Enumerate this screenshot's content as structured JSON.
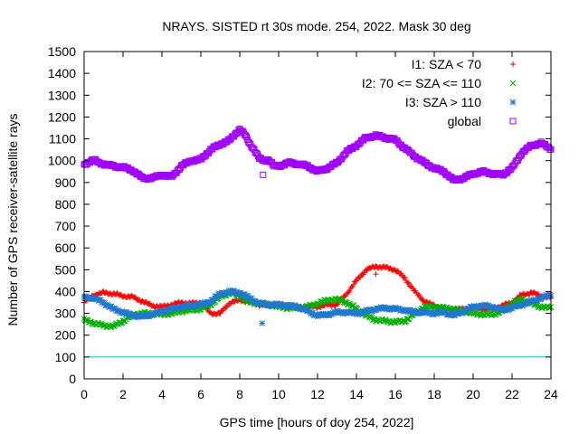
{
  "chart_data": {
    "type": "scatter",
    "title": "NRAYS. SISTED rt 30s mode. 254, 2022. Mask 30 deg",
    "xlabel": "GPS time [hours of doy 254, 2022]",
    "ylabel": "Number of GPS receiver-satellite rays",
    "xlim": [
      0,
      24
    ],
    "ylim": [
      0,
      1500
    ],
    "xticks": [
      0,
      2,
      4,
      6,
      8,
      10,
      12,
      14,
      16,
      18,
      20,
      22,
      24
    ],
    "yticks": [
      0,
      100,
      200,
      300,
      400,
      500,
      600,
      700,
      800,
      900,
      1000,
      1100,
      1200,
      1300,
      1400,
      1500
    ],
    "legend_position": "top-right",
    "reference_line": {
      "y": 100,
      "color": "#00c0c0"
    },
    "series": [
      {
        "name": "I1: SZA < 70",
        "marker": "plus",
        "color": "#ff0000",
        "x": [
          0.0,
          0.5,
          1.0,
          1.5,
          2.0,
          2.5,
          3.0,
          3.5,
          4.0,
          5.0,
          5.5,
          6.0,
          6.5,
          7.0,
          7.5,
          8.0,
          8.5,
          9.0,
          10.0,
          11.0,
          12.0,
          12.5,
          13.0,
          13.5,
          14.0,
          14.5,
          15.0,
          15.5,
          16.0,
          16.5,
          17.0,
          17.5,
          18.0,
          18.5,
          19.0,
          19.5,
          20.0,
          21.0,
          21.5,
          22.0,
          22.5,
          23.0,
          23.5,
          24.0
        ],
        "y": [
          350,
          385,
          395,
          390,
          380,
          375,
          355,
          335,
          330,
          350,
          345,
          350,
          300,
          300,
          350,
          360,
          355,
          340,
          340,
          330,
          330,
          340,
          340,
          390,
          450,
          500,
          515,
          510,
          500,
          460,
          400,
          355,
          335,
          320,
          315,
          320,
          325,
          320,
          335,
          350,
          385,
          395,
          380,
          370
        ]
      },
      {
        "name": "I2: 70 <= SZA <= 110",
        "marker": "cross",
        "color": "#00b000",
        "x": [
          0.0,
          0.5,
          1.0,
          1.5,
          2.0,
          2.5,
          3.0,
          3.5,
          4.0,
          4.5,
          5.0,
          5.5,
          6.0,
          6.5,
          7.0,
          7.5,
          8.0,
          8.5,
          9.0,
          9.5,
          10.0,
          10.5,
          11.0,
          11.5,
          12.0,
          12.5,
          13.0,
          13.5,
          14.0,
          14.5,
          15.0,
          15.5,
          16.0,
          16.5,
          17.0,
          17.5,
          18.0,
          18.5,
          19.0,
          19.5,
          20.0,
          20.5,
          21.0,
          21.5,
          22.0,
          22.5,
          23.0,
          23.5,
          24.0
        ],
        "y": [
          270,
          255,
          245,
          240,
          265,
          295,
          300,
          300,
          295,
          300,
          310,
          315,
          320,
          340,
          375,
          395,
          380,
          350,
          345,
          340,
          330,
          325,
          325,
          330,
          345,
          360,
          365,
          350,
          320,
          290,
          270,
          265,
          260,
          265,
          300,
          330,
          330,
          325,
          320,
          310,
          300,
          295,
          295,
          310,
          345,
          365,
          345,
          330,
          325
        ]
      },
      {
        "name": "I3: SZA > 110",
        "marker": "star",
        "color": "#1f78d0",
        "x": [
          0.0,
          0.5,
          1.0,
          1.5,
          2.0,
          2.5,
          3.0,
          3.5,
          4.0,
          4.5,
          5.0,
          5.5,
          6.0,
          6.5,
          7.0,
          7.5,
          8.0,
          8.5,
          9.0,
          9.5,
          10.0,
          10.5,
          11.0,
          11.5,
          12.0,
          12.5,
          13.0,
          13.5,
          14.0,
          14.5,
          15.0,
          15.5,
          16.0,
          16.5,
          17.0,
          17.5,
          18.0,
          18.5,
          19.0,
          19.5,
          20.0,
          20.5,
          21.0,
          21.5,
          22.0,
          22.5,
          23.0,
          23.5,
          24.0
        ],
        "y": [
          375,
          370,
          350,
          320,
          305,
          290,
          285,
          295,
          310,
          320,
          330,
          335,
          340,
          355,
          390,
          400,
          395,
          370,
          345,
          340,
          340,
          335,
          330,
          310,
          290,
          295,
          305,
          305,
          300,
          310,
          320,
          325,
          320,
          315,
          305,
          305,
          300,
          305,
          290,
          310,
          330,
          335,
          330,
          315,
          325,
          340,
          355,
          370,
          385
        ]
      },
      {
        "name": "global",
        "marker": "square",
        "color": "#a000ff",
        "x": [
          0.0,
          0.25,
          0.5,
          0.75,
          1.0,
          1.5,
          2.0,
          2.5,
          3.0,
          3.5,
          4.0,
          4.5,
          5.0,
          5.5,
          6.0,
          6.5,
          7.0,
          7.5,
          7.75,
          8.0,
          8.25,
          8.5,
          8.75,
          9.0,
          9.25,
          9.5,
          9.75,
          10.0,
          10.5,
          11.0,
          11.5,
          12.0,
          12.5,
          13.0,
          13.5,
          14.0,
          14.5,
          15.0,
          15.5,
          16.0,
          16.5,
          17.0,
          17.5,
          18.0,
          18.5,
          19.0,
          19.5,
          20.0,
          20.5,
          21.0,
          21.5,
          22.0,
          22.5,
          23.0,
          23.5,
          24.0
        ],
        "y": [
          980,
          995,
          1005,
          990,
          985,
          975,
          970,
          955,
          920,
          920,
          935,
          925,
          975,
          1000,
          1005,
          1050,
          1075,
          1095,
          1120,
          1145,
          1120,
          1080,
          1050,
          1010,
          1000,
          1005,
          975,
          975,
          990,
          985,
          975,
          950,
          965,
          990,
          1040,
          1070,
          1105,
          1115,
          1105,
          1095,
          1055,
          1020,
          990,
          965,
          950,
          910,
          920,
          940,
          950,
          940,
          935,
          965,
          1035,
          1070,
          1080,
          1055
        ]
      }
    ],
    "outliers": [
      {
        "series": "I1: SZA < 70",
        "x": 15.0,
        "y": 480
      },
      {
        "series": "I3: SZA > 110",
        "x": 9.15,
        "y": 255
      },
      {
        "series": "global",
        "x": 9.2,
        "y": 935
      }
    ]
  }
}
